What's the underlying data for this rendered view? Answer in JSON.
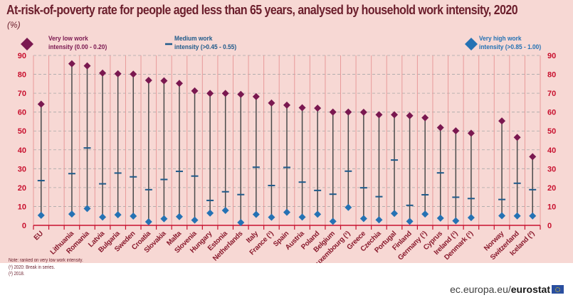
{
  "page": {
    "title": "At-risk-of-poverty rate for people aged less than 65 years, analysed by household work intensity, 2020",
    "unit": "(%)",
    "notes": [
      "Note: ranked on very low work intensity.",
      "(¹) 2020: Break in series.",
      "(²) 2018."
    ],
    "footer_domain": "ec.europa.eu/",
    "footer_brand": "eurostat",
    "colors": {
      "background": "#f7d8d4",
      "very_low": "#7a1850",
      "medium": "#1f5a8a",
      "very_high": "#2572b4",
      "axis": "#c8102e",
      "tick_labels": "#c8102e",
      "gridline": "#a8a8a8",
      "stem": "#4a4a4a"
    }
  },
  "legend": {
    "very_low": {
      "line1": "Very low work",
      "line2": "intensity (0.00 - 0.20)",
      "icon": "diamond"
    },
    "medium": {
      "line1": "Medium work",
      "line2": "intensity (>0.45 - 0.55)",
      "icon": "dash"
    },
    "very_high": {
      "line1": "Very high work",
      "line2": "intensity (>0.85 - 1.00)",
      "icon": "diamond"
    }
  },
  "chart_data": {
    "type": "dot-range",
    "title": "At-risk-of-poverty rate for people aged less than 65 years, analysed by household work intensity, 2020",
    "ylabel": "(%)",
    "ylim": [
      0,
      90
    ],
    "yticks": [
      0,
      10,
      20,
      30,
      40,
      50,
      60,
      70,
      80,
      90
    ],
    "grid": true,
    "legend_position": "top",
    "categories": [
      "EU",
      "",
      "Lithuania",
      "Romania",
      "Latvia",
      "Bulgaria",
      "Sweden",
      "Croatia",
      "Slovakia",
      "Malta",
      "Slovenia",
      "Hungary",
      "Estonia",
      "Netherlands",
      "Italy",
      "France (¹)",
      "Spain",
      "Austria",
      "Poland",
      "Belgium",
      "Luxembourg (¹)",
      "Greece",
      "Czechia",
      "Portugal",
      "Finland",
      "Germany (¹)",
      "Cyprus",
      "Ireland (¹)",
      "Denmark (¹)",
      "",
      "Norway",
      "Switzerland",
      "Iceland (²)"
    ],
    "series": [
      {
        "name": "Very low work intensity (0.00 - 0.20)",
        "marker": "diamond",
        "values": [
          64.2,
          null,
          85.6,
          84.5,
          80.7,
          80.3,
          80.1,
          76.8,
          76.6,
          75.2,
          71.2,
          69.9,
          69.9,
          69.4,
          68.2,
          64.8,
          63.7,
          62.3,
          62.1,
          60.0,
          60.0,
          59.9,
          58.6,
          58.6,
          58.1,
          57.0,
          51.8,
          50.1,
          48.8,
          null,
          55.3,
          46.6,
          36.4
        ]
      },
      {
        "name": "Medium work intensity (>0.45 - 0.55)",
        "marker": "dash",
        "values": [
          23.7,
          null,
          27.4,
          41.0,
          22.0,
          27.7,
          25.7,
          18.9,
          24.3,
          28.6,
          26.1,
          13.2,
          17.8,
          16.3,
          30.8,
          21.1,
          30.7,
          22.9,
          18.5,
          16.5,
          28.7,
          19.9,
          15.2,
          34.6,
          10.6,
          16.2,
          27.8,
          14.9,
          14.2,
          null,
          13.7,
          22.3,
          18.9
        ]
      },
      {
        "name": "Very high work intensity (>0.85 - 1.00)",
        "marker": "diamond",
        "values": [
          5.3,
          null,
          6.0,
          8.9,
          4.4,
          5.6,
          4.9,
          1.9,
          3.5,
          4.6,
          2.8,
          6.5,
          7.9,
          1.5,
          5.8,
          4.3,
          6.9,
          4.4,
          5.9,
          2.1,
          9.5,
          3.6,
          2.9,
          6.3,
          2.1,
          6.0,
          3.8,
          2.4,
          4.1,
          null,
          5.1,
          5.0,
          5.0
        ]
      }
    ]
  }
}
